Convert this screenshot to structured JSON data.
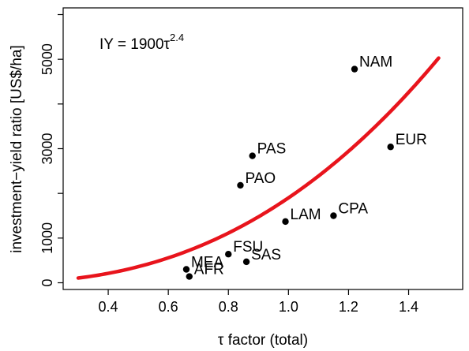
{
  "chart_data": {
    "type": "scatter",
    "title": "",
    "xlabel": "τ factor (total)",
    "ylabel": "investment−yield ratio [US$/ha]",
    "xlim": [
      0.25,
      1.58
    ],
    "ylim": [
      -150,
      6150
    ],
    "xticks": [
      0.4,
      0.6,
      0.8,
      1.0,
      1.2,
      1.4
    ],
    "xtick_labels": [
      "0.4",
      "0.6",
      "0.8",
      "1.0",
      "1.2",
      "1.4"
    ],
    "yticks": [
      0,
      1000,
      3000,
      5000
    ],
    "ytick_labels": [
      "0",
      "1000",
      "3000",
      "5000"
    ],
    "yticks_unlabeled": [
      2000,
      4000,
      6000
    ],
    "grid": false,
    "annotation": {
      "base": "IY = 1900τ",
      "exponent": "2.4"
    },
    "points": [
      {
        "label": "NAM",
        "x": 1.22,
        "y": 4780
      },
      {
        "label": "EUR",
        "x": 1.34,
        "y": 3040
      },
      {
        "label": "PAS",
        "x": 0.88,
        "y": 2840
      },
      {
        "label": "PAO",
        "x": 0.84,
        "y": 2180
      },
      {
        "label": "CPA",
        "x": 1.15,
        "y": 1500
      },
      {
        "label": "LAM",
        "x": 0.99,
        "y": 1370
      },
      {
        "label": "FSU",
        "x": 0.8,
        "y": 640
      },
      {
        "label": "SAS",
        "x": 0.86,
        "y": 470
      },
      {
        "label": "MEA",
        "x": 0.66,
        "y": 300
      },
      {
        "label": "AFR",
        "x": 0.67,
        "y": 140
      }
    ],
    "fit_curve": {
      "coefficient": 1900,
      "exponent": 2.4,
      "x_from": 0.3,
      "x_to": 1.5,
      "color": "#e8141c"
    },
    "point_color": "#000000"
  }
}
